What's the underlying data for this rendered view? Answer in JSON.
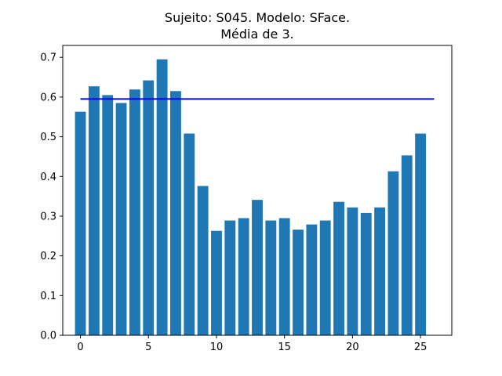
{
  "chart_data": {
    "type": "bar",
    "title": [
      "Sujeito: S045. Modelo: SFace.",
      "Média de 3."
    ],
    "xlabel": "",
    "ylabel": "",
    "x": [
      0,
      1,
      2,
      3,
      4,
      5,
      6,
      7,
      8,
      9,
      10,
      11,
      12,
      13,
      14,
      15,
      16,
      17,
      18,
      19,
      20,
      21,
      22,
      23,
      24,
      25
    ],
    "values": [
      0.563,
      0.627,
      0.605,
      0.585,
      0.619,
      0.642,
      0.695,
      0.615,
      0.508,
      0.376,
      0.263,
      0.289,
      0.295,
      0.341,
      0.289,
      0.295,
      0.266,
      0.279,
      0.289,
      0.336,
      0.322,
      0.308,
      0.322,
      0.413,
      0.453,
      0.508
    ],
    "xlim": [
      -1.3,
      27.3
    ],
    "ylim": [
      0,
      0.73
    ],
    "xticks": [
      0,
      5,
      10,
      15,
      20,
      25
    ],
    "yticks": [
      0.0,
      0.1,
      0.2,
      0.3,
      0.4,
      0.5,
      0.6,
      0.7
    ],
    "ytick_labels": [
      "0.0",
      "0.1",
      "0.2",
      "0.3",
      "0.4",
      "0.5",
      "0.6",
      "0.7"
    ],
    "reference_line": {
      "y": 0.595,
      "x_from": 0,
      "x_to": 26,
      "color": "#0000ff"
    },
    "bar_color": "#1f77b4",
    "grid": false
  }
}
